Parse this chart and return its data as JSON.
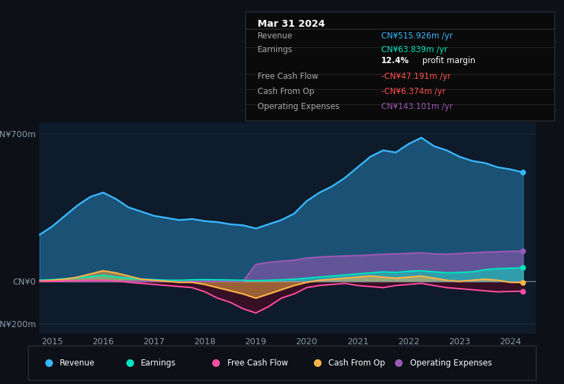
{
  "bg_color": "#0d1117",
  "plot_bg_color": "#0d1b2a",
  "yticks_labels": [
    "CN¥700m",
    "CN¥0",
    "-CN¥200m"
  ],
  "yticks_values": [
    700,
    0,
    -200
  ],
  "xlim": [
    2014.75,
    2024.5
  ],
  "ylim": [
    -250,
    750
  ],
  "x_years": [
    2015,
    2016,
    2017,
    2018,
    2019,
    2020,
    2021,
    2022,
    2023,
    2024
  ],
  "revenue_color": "#38b6ff",
  "earnings_color": "#00e5c0",
  "fcf_color": "#ff4fa3",
  "cashfromop_color": "#ffb347",
  "opex_color": "#9b59b6",
  "series": {
    "revenue": {
      "x": [
        2014.75,
        2015.0,
        2015.25,
        2015.5,
        2015.75,
        2016.0,
        2016.25,
        2016.5,
        2016.75,
        2017.0,
        2017.25,
        2017.5,
        2017.75,
        2018.0,
        2018.25,
        2018.5,
        2018.75,
        2019.0,
        2019.25,
        2019.5,
        2019.75,
        2020.0,
        2020.25,
        2020.5,
        2020.75,
        2021.0,
        2021.25,
        2021.5,
        2021.75,
        2022.0,
        2022.25,
        2022.5,
        2022.75,
        2023.0,
        2023.25,
        2023.5,
        2023.75,
        2024.0,
        2024.25
      ],
      "y": [
        220,
        260,
        310,
        360,
        400,
        420,
        390,
        350,
        330,
        310,
        300,
        290,
        295,
        285,
        280,
        270,
        265,
        250,
        270,
        290,
        320,
        380,
        420,
        450,
        490,
        540,
        590,
        620,
        610,
        650,
        680,
        640,
        620,
        590,
        570,
        560,
        540,
        530,
        516
      ]
    },
    "earnings": {
      "x": [
        2014.75,
        2015.0,
        2015.25,
        2015.5,
        2015.75,
        2016.0,
        2016.25,
        2016.5,
        2016.75,
        2017.0,
        2017.25,
        2017.5,
        2017.75,
        2018.0,
        2018.25,
        2018.5,
        2018.75,
        2019.0,
        2019.25,
        2019.5,
        2019.75,
        2020.0,
        2020.25,
        2020.5,
        2020.75,
        2021.0,
        2021.25,
        2021.5,
        2021.75,
        2022.0,
        2022.25,
        2022.5,
        2022.75,
        2023.0,
        2023.25,
        2023.5,
        2023.75,
        2024.0,
        2024.25
      ],
      "y": [
        5,
        8,
        12,
        18,
        22,
        28,
        20,
        15,
        10,
        8,
        5,
        5,
        7,
        8,
        7,
        6,
        5,
        3,
        5,
        7,
        10,
        15,
        20,
        25,
        30,
        35,
        40,
        45,
        42,
        48,
        50,
        45,
        40,
        42,
        45,
        55,
        60,
        62,
        64
      ]
    },
    "fcf": {
      "x": [
        2014.75,
        2015.0,
        2015.25,
        2015.5,
        2015.75,
        2016.0,
        2016.25,
        2016.5,
        2016.75,
        2017.0,
        2017.25,
        2017.5,
        2017.75,
        2018.0,
        2018.25,
        2018.5,
        2018.75,
        2019.0,
        2019.25,
        2019.5,
        2019.75,
        2020.0,
        2020.25,
        2020.5,
        2020.75,
        2021.0,
        2021.25,
        2021.5,
        2021.75,
        2022.0,
        2022.25,
        2022.5,
        2022.75,
        2023.0,
        2023.25,
        2023.5,
        2023.75,
        2024.0,
        2024.25
      ],
      "y": [
        0,
        0,
        2,
        3,
        5,
        5,
        2,
        -5,
        -10,
        -15,
        -20,
        -25,
        -30,
        -50,
        -80,
        -100,
        -130,
        -150,
        -120,
        -80,
        -60,
        -30,
        -20,
        -15,
        -10,
        -20,
        -25,
        -30,
        -20,
        -15,
        -10,
        -20,
        -30,
        -35,
        -40,
        -45,
        -50,
        -48,
        -47
      ]
    },
    "cashfromop": {
      "x": [
        2014.75,
        2015.0,
        2015.25,
        2015.5,
        2015.75,
        2016.0,
        2016.25,
        2016.5,
        2016.75,
        2017.0,
        2017.25,
        2017.5,
        2017.75,
        2018.0,
        2018.25,
        2018.5,
        2018.75,
        2019.0,
        2019.25,
        2019.5,
        2019.75,
        2020.0,
        2020.25,
        2020.5,
        2020.75,
        2021.0,
        2021.25,
        2021.5,
        2021.75,
        2022.0,
        2022.25,
        2022.5,
        2022.75,
        2023.0,
        2023.25,
        2023.5,
        2023.75,
        2024.0,
        2024.25
      ],
      "y": [
        2,
        5,
        10,
        20,
        35,
        50,
        40,
        25,
        10,
        5,
        0,
        -5,
        -5,
        -15,
        -30,
        -45,
        -60,
        -80,
        -60,
        -40,
        -20,
        -5,
        5,
        10,
        15,
        20,
        25,
        20,
        15,
        20,
        25,
        15,
        5,
        0,
        5,
        10,
        5,
        -5,
        -6
      ]
    },
    "opex": {
      "x": [
        2014.75,
        2015.0,
        2015.25,
        2015.5,
        2015.75,
        2016.0,
        2016.25,
        2016.5,
        2016.75,
        2017.0,
        2017.25,
        2017.5,
        2017.75,
        2018.0,
        2018.25,
        2018.5,
        2018.75,
        2019.0,
        2019.25,
        2019.5,
        2019.75,
        2020.0,
        2020.25,
        2020.5,
        2020.75,
        2021.0,
        2021.25,
        2021.5,
        2021.75,
        2022.0,
        2022.25,
        2022.5,
        2022.75,
        2023.0,
        2023.25,
        2023.5,
        2023.75,
        2024.0,
        2024.25
      ],
      "y": [
        0,
        0,
        0,
        0,
        0,
        0,
        0,
        0,
        0,
        0,
        0,
        0,
        0,
        0,
        0,
        0,
        0,
        80,
        90,
        95,
        100,
        110,
        115,
        118,
        120,
        122,
        125,
        128,
        130,
        132,
        135,
        130,
        128,
        132,
        135,
        138,
        140,
        142,
        143
      ]
    }
  },
  "info_box": {
    "title": "Mar 31 2024",
    "rows": [
      {
        "label": "Revenue",
        "value": "CN¥515.926m /yr",
        "value_color": "#38b6ff"
      },
      {
        "label": "Earnings",
        "value": "CN¥63.839m /yr",
        "value_color": "#00e5c0"
      },
      {
        "label": "",
        "value": "12.4% profit margin",
        "value_color": "#ffffff"
      },
      {
        "label": "Free Cash Flow",
        "value": "-CN¥47.191m /yr",
        "value_color": "#ff4f4f"
      },
      {
        "label": "Cash From Op",
        "value": "-CN¥6.374m /yr",
        "value_color": "#ff4f4f"
      },
      {
        "label": "Operating Expenses",
        "value": "CN¥143.101m /yr",
        "value_color": "#9b59b6"
      }
    ]
  },
  "legend_items": [
    {
      "label": "Revenue",
      "color": "#38b6ff"
    },
    {
      "label": "Earnings",
      "color": "#00e5c0"
    },
    {
      "label": "Free Cash Flow",
      "color": "#ff4fa3"
    },
    {
      "label": "Cash From Op",
      "color": "#ffb347"
    },
    {
      "label": "Operating Expenses",
      "color": "#9b59b6"
    }
  ],
  "grid_color": "#1e2d3d",
  "zero_line_color": "#8899aa",
  "tick_label_color": "#8899aa"
}
